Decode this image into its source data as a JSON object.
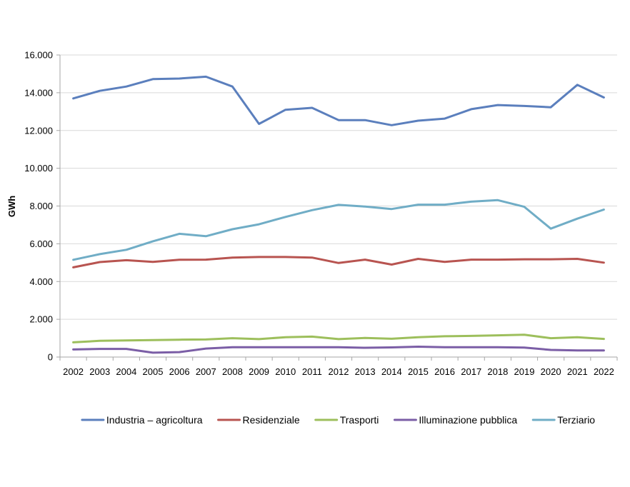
{
  "chart_data": {
    "type": "line",
    "title": "",
    "xlabel": "",
    "ylabel": "GWh",
    "ylim": [
      0,
      16000
    ],
    "yticks": [
      0,
      2000,
      4000,
      6000,
      8000,
      10000,
      12000,
      14000,
      16000
    ],
    "ytick_labels": [
      "0",
      "2.000",
      "4.000",
      "6.000",
      "8.000",
      "10.000",
      "12.000",
      "14.000",
      "16.000"
    ],
    "grid": "horizontal",
    "legend_position": "bottom",
    "categories": [
      "2002",
      "2003",
      "2004",
      "2005",
      "2006",
      "2007",
      "2008",
      "2009",
      "2010",
      "2011",
      "2012",
      "2013",
      "2014",
      "2015",
      "2016",
      "2017",
      "2018",
      "2019",
      "2020",
      "2021",
      "2022"
    ],
    "series": [
      {
        "name": "Industria – agricoltura",
        "color": "#5b7fbd",
        "values": [
          13700,
          14100,
          14330,
          14720,
          14750,
          14850,
          14330,
          12350,
          13100,
          13200,
          12550,
          12550,
          12280,
          12520,
          12630,
          13130,
          13350,
          13300,
          13230,
          14420,
          13750
        ]
      },
      {
        "name": "Residenziale",
        "color": "#b85450",
        "values": [
          4750,
          5030,
          5130,
          5040,
          5150,
          5160,
          5270,
          5300,
          5300,
          5270,
          4980,
          5160,
          4900,
          5200,
          5040,
          5160,
          5160,
          5180,
          5180,
          5200,
          5000
        ]
      },
      {
        "name": "Trasporti",
        "color": "#9dbf5c",
        "values": [
          780,
          860,
          880,
          900,
          920,
          930,
          1000,
          950,
          1050,
          1080,
          950,
          1010,
          970,
          1050,
          1100,
          1120,
          1150,
          1180,
          1000,
          1050,
          960
        ]
      },
      {
        "name": "Illuminazione pubblica",
        "color": "#7b5ea6",
        "values": [
          400,
          430,
          430,
          230,
          260,
          450,
          520,
          520,
          520,
          520,
          520,
          490,
          510,
          550,
          520,
          520,
          520,
          500,
          380,
          350,
          350
        ]
      },
      {
        "name": "Terziario",
        "color": "#70adc6",
        "values": [
          5150,
          5450,
          5680,
          6130,
          6530,
          6400,
          6770,
          7030,
          7420,
          7780,
          8060,
          7970,
          7840,
          8070,
          8070,
          8230,
          8310,
          7960,
          6800,
          7330,
          7810
        ]
      }
    ]
  }
}
